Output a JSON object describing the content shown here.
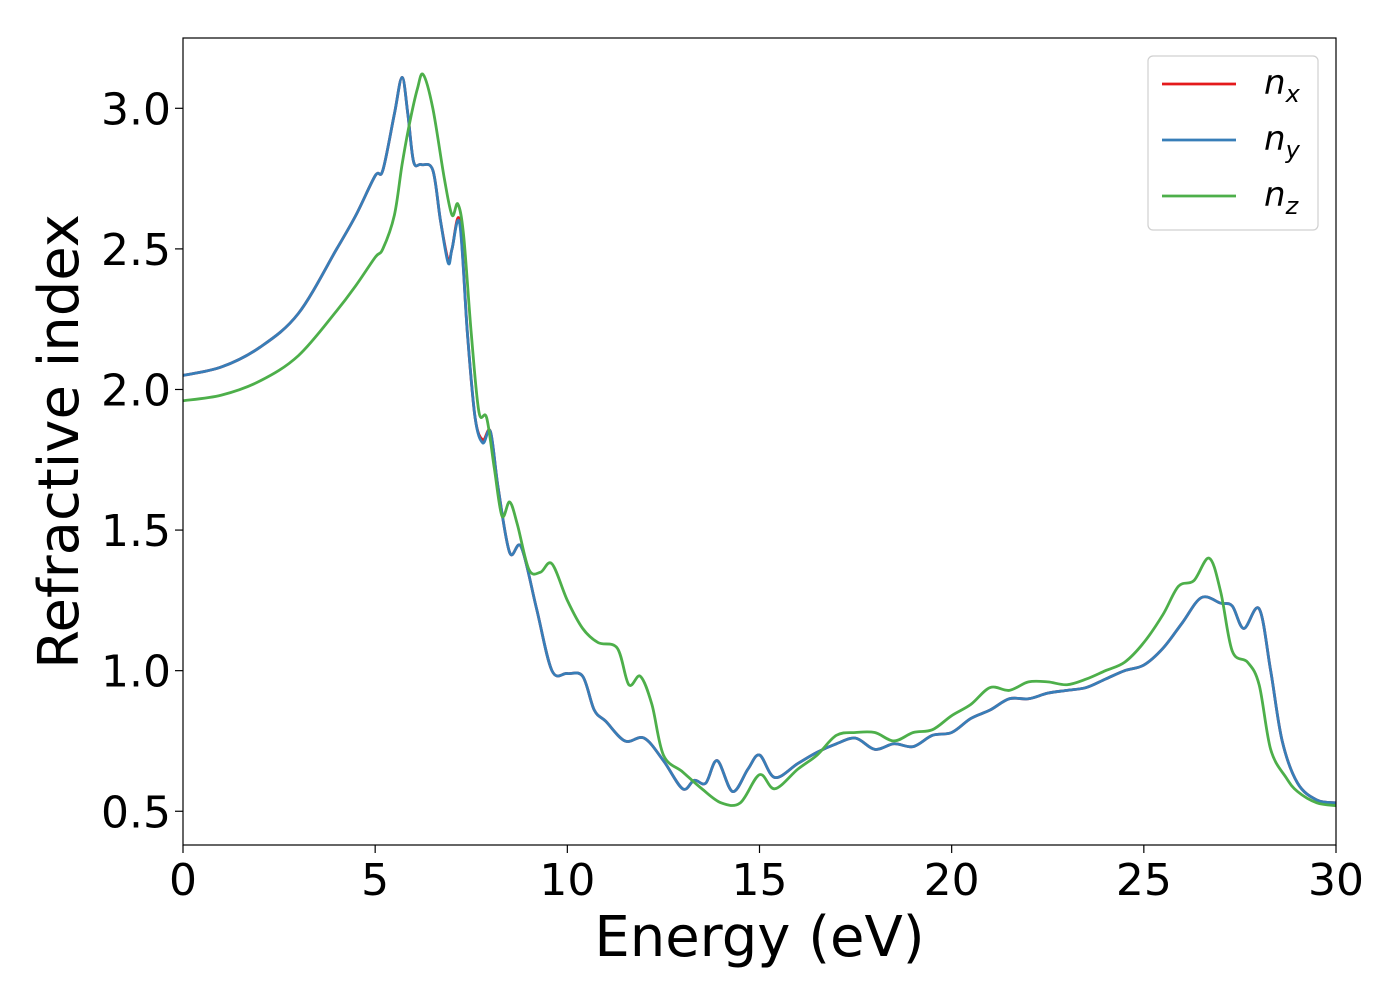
{
  "chart_data": {
    "type": "line",
    "title": "",
    "xlabel": "Energy (eV)",
    "ylabel": "Refractive index",
    "xlim": [
      0,
      30
    ],
    "ylim": [
      0.38,
      3.25
    ],
    "xticks": [
      0,
      5,
      10,
      15,
      20,
      25,
      30
    ],
    "yticks": [
      0.5,
      1.0,
      1.5,
      2.0,
      2.5,
      3.0
    ],
    "xtick_labels": [
      "0",
      "5",
      "10",
      "15",
      "20",
      "25",
      "30"
    ],
    "ytick_labels": [
      "0.5",
      "1.0",
      "1.5",
      "2.0",
      "2.5",
      "3.0"
    ],
    "grid": false,
    "legend_position": "top-right",
    "series": [
      {
        "name": "n_x",
        "label_main": "n",
        "label_sub": "x",
        "color": "#e41a1c",
        "x": [
          0,
          1,
          2,
          3,
          4,
          4.5,
          5,
          5.2,
          5.5,
          5.7,
          5.85,
          6.0,
          6.2,
          6.5,
          6.7,
          6.9,
          7.0,
          7.2,
          7.4,
          7.6,
          7.8,
          8.0,
          8.2,
          8.5,
          8.8,
          9.2,
          9.6,
          10.0,
          10.4,
          10.7,
          11.0,
          11.5,
          12.0,
          12.5,
          13.0,
          13.3,
          13.6,
          13.9,
          14.3,
          14.7,
          15.0,
          15.4,
          16.0,
          16.5,
          17.0,
          17.5,
          18.0,
          18.5,
          19.0,
          19.5,
          20.0,
          20.5,
          21.0,
          21.5,
          22.0,
          22.5,
          23.0,
          23.5,
          24.0,
          24.5,
          25.0,
          25.5,
          26.0,
          26.5,
          27.0,
          27.3,
          27.6,
          28.0,
          28.3,
          28.6,
          29.0,
          29.5,
          30.0
        ],
        "y": [
          2.05,
          2.08,
          2.15,
          2.27,
          2.5,
          2.62,
          2.76,
          2.78,
          2.98,
          3.11,
          2.98,
          2.81,
          2.8,
          2.78,
          2.6,
          2.46,
          2.5,
          2.6,
          2.2,
          1.9,
          1.82,
          1.85,
          1.65,
          1.42,
          1.44,
          1.22,
          1.0,
          0.99,
          0.98,
          0.86,
          0.82,
          0.75,
          0.76,
          0.68,
          0.58,
          0.61,
          0.6,
          0.68,
          0.57,
          0.65,
          0.7,
          0.62,
          0.67,
          0.71,
          0.74,
          0.76,
          0.72,
          0.74,
          0.73,
          0.77,
          0.78,
          0.83,
          0.86,
          0.9,
          0.9,
          0.92,
          0.93,
          0.94,
          0.97,
          1.0,
          1.02,
          1.08,
          1.17,
          1.26,
          1.24,
          1.23,
          1.15,
          1.22,
          1.0,
          0.75,
          0.6,
          0.54,
          0.53
        ]
      },
      {
        "name": "n_y",
        "label_main": "n",
        "label_sub": "y",
        "color": "#377eb8",
        "x": [
          0,
          1,
          2,
          3,
          4,
          4.5,
          5,
          5.2,
          5.5,
          5.7,
          5.85,
          6.0,
          6.2,
          6.5,
          6.7,
          6.9,
          7.0,
          7.2,
          7.4,
          7.6,
          7.8,
          8.0,
          8.2,
          8.5,
          8.8,
          9.2,
          9.6,
          10.0,
          10.4,
          10.7,
          11.0,
          11.5,
          12.0,
          12.5,
          13.0,
          13.3,
          13.6,
          13.9,
          14.3,
          14.7,
          15.0,
          15.4,
          16.0,
          16.5,
          17.0,
          17.5,
          18.0,
          18.5,
          19.0,
          19.5,
          20.0,
          20.5,
          21.0,
          21.5,
          22.0,
          22.5,
          23.0,
          23.5,
          24.0,
          24.5,
          25.0,
          25.5,
          26.0,
          26.5,
          27.0,
          27.3,
          27.6,
          28.0,
          28.3,
          28.6,
          29.0,
          29.5,
          30.0
        ],
        "y": [
          2.05,
          2.08,
          2.15,
          2.27,
          2.5,
          2.62,
          2.76,
          2.78,
          2.98,
          3.11,
          2.98,
          2.81,
          2.8,
          2.78,
          2.6,
          2.45,
          2.5,
          2.59,
          2.2,
          1.9,
          1.81,
          1.85,
          1.65,
          1.42,
          1.44,
          1.22,
          1.0,
          0.99,
          0.98,
          0.86,
          0.82,
          0.75,
          0.76,
          0.68,
          0.58,
          0.61,
          0.6,
          0.68,
          0.57,
          0.65,
          0.7,
          0.62,
          0.67,
          0.71,
          0.74,
          0.76,
          0.72,
          0.74,
          0.73,
          0.77,
          0.78,
          0.83,
          0.86,
          0.9,
          0.9,
          0.92,
          0.93,
          0.94,
          0.97,
          1.0,
          1.02,
          1.08,
          1.17,
          1.26,
          1.24,
          1.23,
          1.15,
          1.22,
          1.0,
          0.75,
          0.6,
          0.54,
          0.53
        ]
      },
      {
        "name": "n_z",
        "label_main": "n",
        "label_sub": "z",
        "color": "#4daf4a",
        "x": [
          0,
          1,
          2,
          3,
          4,
          4.5,
          5,
          5.2,
          5.5,
          5.7,
          5.9,
          6.1,
          6.25,
          6.5,
          6.8,
          7.0,
          7.15,
          7.3,
          7.5,
          7.7,
          7.9,
          8.1,
          8.3,
          8.5,
          8.7,
          9.0,
          9.3,
          9.6,
          10.0,
          10.4,
          10.8,
          11.3,
          11.6,
          11.9,
          12.2,
          12.5,
          13.0,
          13.5,
          14.0,
          14.5,
          15.0,
          15.4,
          16.0,
          16.5,
          17.0,
          17.5,
          18.0,
          18.5,
          19.0,
          19.5,
          20.0,
          20.5,
          21.0,
          21.5,
          22.0,
          22.5,
          23.0,
          23.5,
          24.0,
          24.5,
          25.0,
          25.5,
          25.9,
          26.3,
          26.7,
          27.0,
          27.3,
          27.7,
          28.0,
          28.3,
          28.7,
          29.0,
          29.5,
          30.0
        ],
        "y": [
          1.96,
          1.98,
          2.03,
          2.12,
          2.28,
          2.37,
          2.47,
          2.5,
          2.62,
          2.8,
          2.95,
          3.07,
          3.12,
          3.0,
          2.75,
          2.62,
          2.66,
          2.55,
          2.2,
          1.92,
          1.9,
          1.72,
          1.55,
          1.6,
          1.52,
          1.36,
          1.35,
          1.38,
          1.25,
          1.15,
          1.1,
          1.08,
          0.95,
          0.98,
          0.88,
          0.7,
          0.64,
          0.58,
          0.53,
          0.53,
          0.63,
          0.58,
          0.65,
          0.7,
          0.77,
          0.78,
          0.78,
          0.75,
          0.78,
          0.79,
          0.84,
          0.88,
          0.94,
          0.93,
          0.96,
          0.96,
          0.95,
          0.97,
          1.0,
          1.03,
          1.1,
          1.2,
          1.3,
          1.32,
          1.4,
          1.28,
          1.07,
          1.03,
          0.95,
          0.72,
          0.62,
          0.57,
          0.53,
          0.52
        ]
      }
    ]
  }
}
